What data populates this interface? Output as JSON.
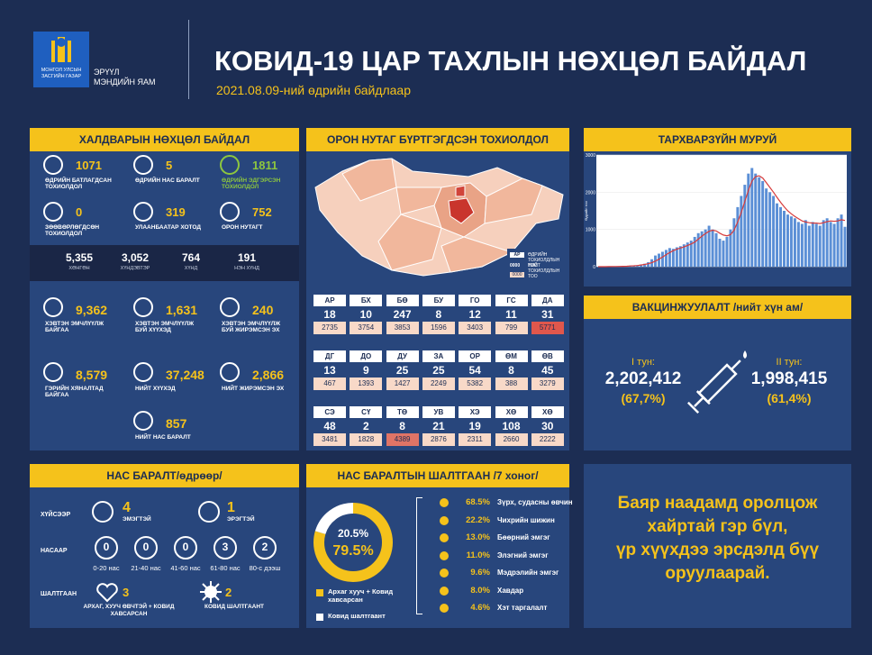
{
  "header": {
    "logo_lines": [
      "МОНГОЛ УЛСЫН",
      "ЗАСГИЙН ГАЗАР"
    ],
    "ministry_lines": [
      "ЭРҮҮЛ",
      "МЭНДИЙН ЯАМ"
    ],
    "title": "КОВИД-19 ЦАР ТАХЛЫН НӨХЦӨЛ БАЙДАЛ",
    "date": "2021.08.09-ний өдрийн байдлаар"
  },
  "infection": {
    "title": "ХАЛДВАРЫН НӨХЦӨЛ БАЙДАЛ",
    "daily": [
      {
        "value": "1071",
        "label": "ӨДРИЙН БАТЛАГДСАН ТОХИОЛДОЛ"
      },
      {
        "value": "5",
        "label": "ӨДРИЙН НАС БАРАЛТ"
      },
      {
        "value": "1811",
        "label": "ӨДРИЙН ЭДГЭРСЭН ТОХИОЛДОЛ",
        "color": "#8dc63f"
      },
      {
        "value": "0",
        "label": "ЗӨӨВӨРЛӨГДСӨН ТОХИОЛДОЛ"
      },
      {
        "value": "319",
        "label": "УЛААНБААТАР ХОТОД"
      },
      {
        "value": "752",
        "label": "ОРОН НУТАГТ"
      }
    ],
    "severity": [
      {
        "value": "5,355",
        "label": "ХӨНГӨН"
      },
      {
        "value": "3,052",
        "label": "ХҮНДЭВТЭР"
      },
      {
        "value": "764",
        "label": "ХҮНД"
      },
      {
        "value": "191",
        "label": "НЭН ХҮНД"
      }
    ],
    "treatment": [
      {
        "value": "9,362",
        "label": "ХЭВТЭН ЭМЧЛҮҮЛЖ БАЙГАА"
      },
      {
        "value": "1,631",
        "label": "ХЭВТЭН ЭМЧЛҮҮЛЖ БУЙ ХҮҮХЭД"
      },
      {
        "value": "240",
        "label": "ХЭВТЭН ЭМЧЛҮҮЛЖ БУЙ ЖИРЭМСЭН ЭХ"
      },
      {
        "value": "8,579",
        "label": "ГЭРИЙН ХЯНАЛТАД БАЙГАА"
      },
      {
        "value": "37,248",
        "label": "НИЙТ ХҮҮХЭД"
      },
      {
        "value": "2,866",
        "label": "НИЙТ ЖИРЭМСЭН ЭХ"
      },
      {
        "value": "857",
        "label": "НИЙТ НАС БАРАЛТ"
      }
    ]
  },
  "map": {
    "title": "ОРОН НУТАГ БҮРТГЭГДСЭН ТОХИОЛДОЛ",
    "legend": {
      "code": "АР",
      "daily_label": "ӨДРИЙН ТОХИОЛДЛЫН ТОО",
      "daily_sample": "0000",
      "total_label": "НИЙТ ТОХИОЛДЛЫН ТОО",
      "total_sample": "0000"
    },
    "provinces": [
      {
        "code": "АР",
        "daily": 18,
        "total": 2735,
        "color": "#f8d9c8"
      },
      {
        "code": "БХ",
        "daily": 10,
        "total": 3754,
        "color": "#f8d9c8"
      },
      {
        "code": "БӨ",
        "daily": 247,
        "total": 3853,
        "color": "#f8d9c8"
      },
      {
        "code": "БУ",
        "daily": 8,
        "total": 1596,
        "color": "#f8d9c8"
      },
      {
        "code": "ГО",
        "daily": 12,
        "total": 3403,
        "color": "#f8d9c8"
      },
      {
        "code": "ГС",
        "daily": 11,
        "total": 799,
        "color": "#f8d9c8"
      },
      {
        "code": "ДА",
        "daily": 31,
        "total": 5771,
        "color": "#e0574c"
      },
      {
        "code": "ДГ",
        "daily": 13,
        "total": 467,
        "color": "#f8d9c8"
      },
      {
        "code": "ДО",
        "daily": 9,
        "total": 1393,
        "color": "#f8d9c8"
      },
      {
        "code": "ДУ",
        "daily": 25,
        "total": 1427,
        "color": "#f8d9c8"
      },
      {
        "code": "ЗА",
        "daily": 25,
        "total": 2249,
        "color": "#f8d9c8"
      },
      {
        "code": "ОР",
        "daily": 54,
        "total": 5382,
        "color": "#f8d9c8"
      },
      {
        "code": "ӨМ",
        "daily": 8,
        "total": 388,
        "color": "#f8d9c8"
      },
      {
        "code": "ӨВ",
        "daily": 45,
        "total": 3279,
        "color": "#f8d9c8"
      },
      {
        "code": "СЭ",
        "daily": 48,
        "total": 3481,
        "color": "#f8d9c8"
      },
      {
        "code": "СҮ",
        "daily": 2,
        "total": 1828,
        "color": "#f8d9c8"
      },
      {
        "code": "ТӨ",
        "daily": 8,
        "total": 4389,
        "color": "#e07466"
      },
      {
        "code": "УВ",
        "daily": 21,
        "total": 2876,
        "color": "#f8d9c8"
      },
      {
        "code": "ХЭ",
        "daily": 19,
        "total": 2311,
        "color": "#f8d9c8"
      },
      {
        "code": "ХӨ",
        "daily": 108,
        "total": 2660,
        "color": "#f8d9c8"
      },
      {
        "code": "ХӨ",
        "daily": 30,
        "total": 2222,
        "color": "#f8d9c8"
      }
    ]
  },
  "curve": {
    "title": "ТАРХВАРЗҮЙН МУРУЙ",
    "ylabel": "Өдрийн тоо",
    "ylim": [
      0,
      3000
    ],
    "yticks": [
      0,
      1000,
      2000,
      3000
    ],
    "bars": {
      "color": "#5b8fd6",
      "values": [
        0,
        0,
        0,
        0,
        10,
        5,
        0,
        20,
        10,
        30,
        15,
        40,
        60,
        80,
        120,
        200,
        300,
        350,
        400,
        450,
        500,
        480,
        520,
        550,
        600,
        650,
        700,
        800,
        900,
        950,
        1000,
        1100,
        1000,
        900,
        750,
        700,
        800,
        1000,
        1300,
        1600,
        1900,
        2200,
        2500,
        2650,
        2500,
        2400,
        2300,
        2100,
        2000,
        1900,
        1700,
        1600,
        1500,
        1400,
        1350,
        1300,
        1200,
        1150,
        1250,
        1100,
        1200,
        1150,
        1100,
        1250,
        1300,
        1200,
        1150,
        1300,
        1400,
        1071
      ]
    },
    "trend": {
      "color": "#d63b3b",
      "values": [
        0,
        0,
        0,
        2,
        4,
        6,
        7,
        10,
        13,
        19,
        24,
        31,
        45,
        60,
        80,
        110,
        150,
        200,
        260,
        320,
        380,
        430,
        470,
        500,
        530,
        570,
        610,
        660,
        740,
        820,
        890,
        950,
        980,
        960,
        900,
        850,
        830,
        860,
        980,
        1200,
        1450,
        1750,
        2050,
        2300,
        2420,
        2440,
        2380,
        2260,
        2130,
        2000,
        1860,
        1730,
        1610,
        1500,
        1420,
        1350,
        1290,
        1230,
        1200,
        1180,
        1170,
        1170,
        1160,
        1180,
        1210,
        1230,
        1220,
        1230,
        1260,
        1240
      ]
    }
  },
  "vaccination": {
    "title": "ВАКЦИНЖУУЛАЛТ /нийт хүн ам/",
    "doses": [
      {
        "label": "I тун:",
        "count": "2,202,412",
        "share": "(67,7%)"
      },
      {
        "label": "II тун:",
        "count": "1,998,415",
        "share": "(61,4%)"
      }
    ]
  },
  "deaths": {
    "title": "НАС БАРАЛТ/өдрөөр/",
    "sex": {
      "label": "ХҮЙСЭЭР",
      "items": [
        {
          "value": 4,
          "label": "ЭМЭГТЭЙ"
        },
        {
          "value": 1,
          "label": "ЭРЭГТЭЙ"
        }
      ]
    },
    "age": {
      "label": "НАСААР",
      "items": [
        {
          "value": 0,
          "label": "0-20 нас"
        },
        {
          "value": 0,
          "label": "21-40 нас"
        },
        {
          "value": 0,
          "label": "41-60 нас"
        },
        {
          "value": 3,
          "label": "61-80 нас"
        },
        {
          "value": 2,
          "label": "80-с дээш"
        }
      ]
    },
    "cause": {
      "label": "ШАЛТГААН",
      "items": [
        {
          "value": 3,
          "label": "АРХАГ, ХУУЧ ӨВЧТЭЙ + КОВИД ХАВСАРСАН"
        },
        {
          "value": 2,
          "label": "КОВИД ШАЛТГААНТ"
        }
      ]
    }
  },
  "death_causes": {
    "title": "НАС БАРАЛТЫН ШАЛТГААН /7 хоног/",
    "donut": {
      "values": [
        79.5,
        20.5
      ],
      "value_labels": [
        "79.5%",
        "20.5%"
      ],
      "labels": [
        "Архаг хууч + Ковид хавсарсан",
        "Ковид шалтгаант"
      ],
      "colors": [
        "#f5c21b",
        "#ffffff"
      ]
    },
    "conditions": [
      {
        "share": "68.5%",
        "label": "Зүрх, судасны өвчин"
      },
      {
        "share": "22.2%",
        "label": "Чихрийн шижин"
      },
      {
        "share": "13.0%",
        "label": "Бөөрний эмгэг"
      },
      {
        "share": "11.0%",
        "label": "Элэгний эмгэг"
      },
      {
        "share": "9.6%",
        "label": "Мэдрэлийн эмгэг"
      },
      {
        "share": "8.0%",
        "label": "Хавдар"
      },
      {
        "share": "4.6%",
        "label": "Хэт таргалалт"
      }
    ]
  },
  "message": {
    "lines": [
      "Баяр наадамд оролцож",
      "хайртай гэр бүл,",
      "үр хүүхдээ эрсдэлд бүү",
      "оруулаарай."
    ]
  }
}
